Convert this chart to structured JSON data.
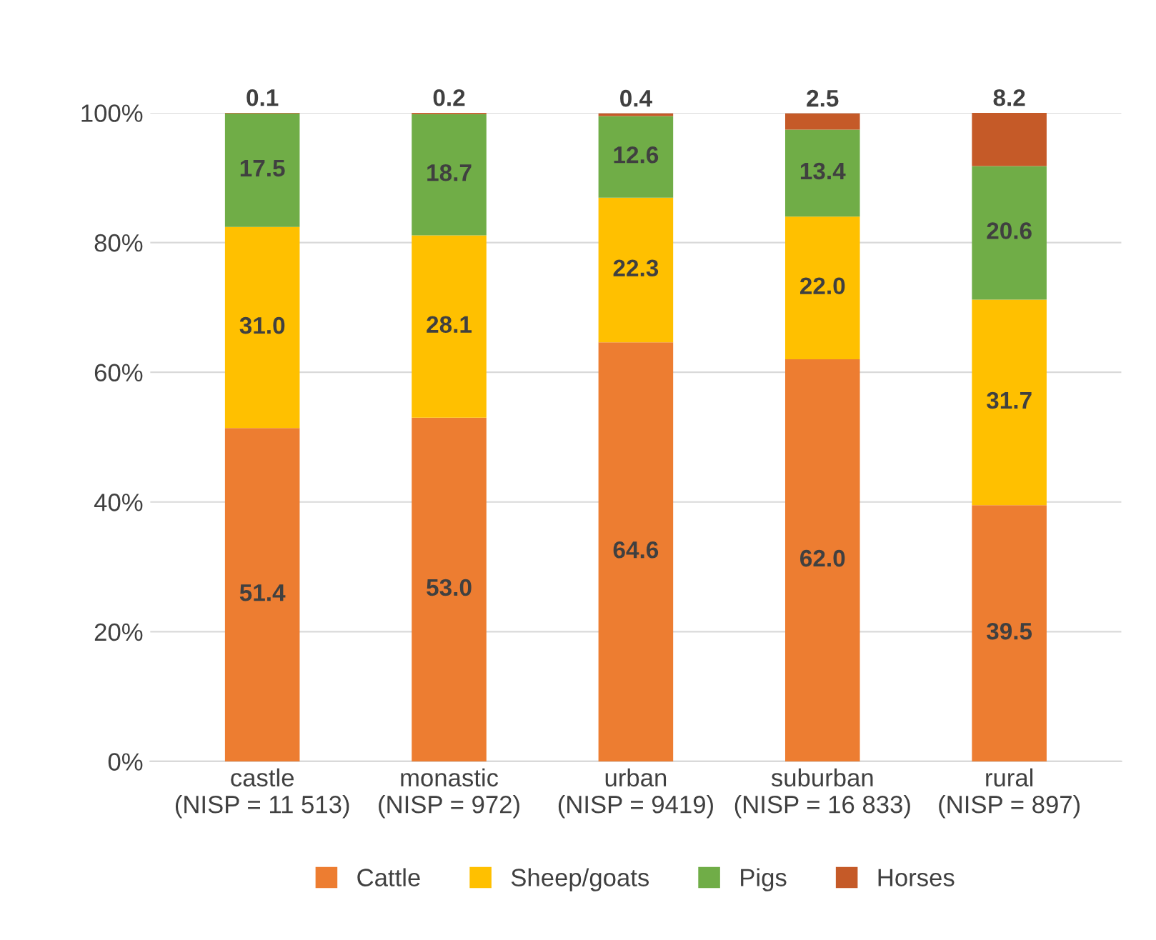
{
  "chart_data": {
    "type": "bar",
    "stacked": true,
    "categories": [
      "castle\n(NISP = 11 513)",
      "monastic\n(NISP = 972)",
      "urban\n(NISP = 9419)",
      "suburban\n(NISP = 16 833)",
      "rural\n(NISP = 897)"
    ],
    "series": [
      {
        "name": "Cattle",
        "color": "#ed7d31",
        "values": [
          51.4,
          53.0,
          64.6,
          62.0,
          39.5
        ],
        "value_labels": [
          "51.4",
          "53.0",
          "64.6",
          "62.0",
          "39.5"
        ]
      },
      {
        "name": "Sheep/goats",
        "color": "#ffc000",
        "values": [
          31.0,
          28.1,
          22.3,
          22.0,
          31.7
        ],
        "value_labels": [
          "31.0",
          "28.1",
          "22.3",
          "22.0",
          "31.7"
        ]
      },
      {
        "name": "Pigs",
        "color": "#70ad47",
        "values": [
          17.5,
          18.7,
          12.6,
          13.4,
          20.6
        ],
        "value_labels": [
          "17.5",
          "18.7",
          "12.6",
          "13.4",
          "20.6"
        ]
      },
      {
        "name": "Horses",
        "color": "#c55a28",
        "values": [
          0.1,
          0.2,
          0.4,
          2.5,
          8.2
        ],
        "value_labels": [
          "0.1",
          "0.2",
          "0.4",
          "2.5",
          "8.2"
        ]
      }
    ],
    "ylim": [
      0,
      100
    ],
    "yticks": [
      {
        "value": 0,
        "label": "0%"
      },
      {
        "value": 20,
        "label": "20%"
      },
      {
        "value": 40,
        "label": "40%"
      },
      {
        "value": 60,
        "label": "60%"
      },
      {
        "value": 80,
        "label": "80%"
      },
      {
        "value": 100,
        "label": "100%"
      }
    ],
    "grid": "y",
    "legend": "bottom"
  }
}
